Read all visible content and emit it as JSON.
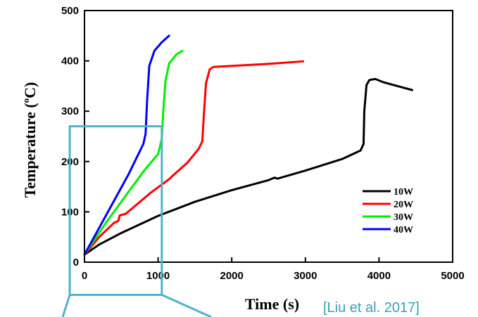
{
  "chart_data": {
    "type": "line",
    "xlabel": "Time (s)",
    "ylabel": "Temperature (°C)",
    "ylabel_parts": {
      "pre": "Temperature (",
      "sup": "o",
      "post": "C)"
    },
    "xlim": [
      0,
      5000
    ],
    "ylim": [
      0,
      500
    ],
    "xticks": [
      0,
      1000,
      2000,
      3000,
      4000,
      5000
    ],
    "yticks": [
      0,
      100,
      200,
      300,
      400,
      500
    ],
    "legend_position": "bottom-right",
    "grid": false,
    "series": [
      {
        "name": "10W",
        "color": "#000000",
        "x": [
          0,
          200,
          500,
          1000,
          1500,
          2000,
          2500,
          2580,
          2620,
          3000,
          3500,
          3750,
          3790,
          3800,
          3830,
          3870,
          3950,
          4050,
          4250,
          4450
        ],
        "y": [
          15,
          35,
          58,
          92,
          120,
          143,
          163,
          168,
          166,
          182,
          205,
          222,
          235,
          300,
          352,
          362,
          364,
          358,
          350,
          342
        ]
      },
      {
        "name": "20W",
        "color": "#ff0000",
        "x": [
          0,
          200,
          400,
          460,
          480,
          560,
          900,
          1150,
          1200,
          1400,
          1550,
          1600,
          1620,
          1650,
          1700,
          1750,
          2000,
          2500,
          2970
        ],
        "y": [
          15,
          50,
          78,
          82,
          93,
          96,
          138,
          165,
          172,
          198,
          225,
          240,
          290,
          355,
          383,
          388,
          390,
          394,
          399
        ]
      },
      {
        "name": "30W",
        "color": "#00ee00",
        "x": [
          0,
          300,
          600,
          800,
          1000,
          1050,
          1070,
          1100,
          1150,
          1250,
          1330
        ],
        "y": [
          15,
          80,
          140,
          180,
          215,
          245,
          300,
          360,
          395,
          413,
          420
        ]
      },
      {
        "name": "40W",
        "color": "#0000ff",
        "x": [
          0,
          300,
          600,
          800,
          830,
          850,
          880,
          950,
          1050,
          1150
        ],
        "y": [
          15,
          95,
          175,
          235,
          255,
          320,
          390,
          420,
          437,
          450
        ]
      }
    ]
  },
  "citation": "[Liu et al. 2017]",
  "overlay": {
    "color": "#4fb3c8",
    "box_x": [
      -200,
      1050
    ],
    "box_y": [
      270,
      -65
    ]
  }
}
